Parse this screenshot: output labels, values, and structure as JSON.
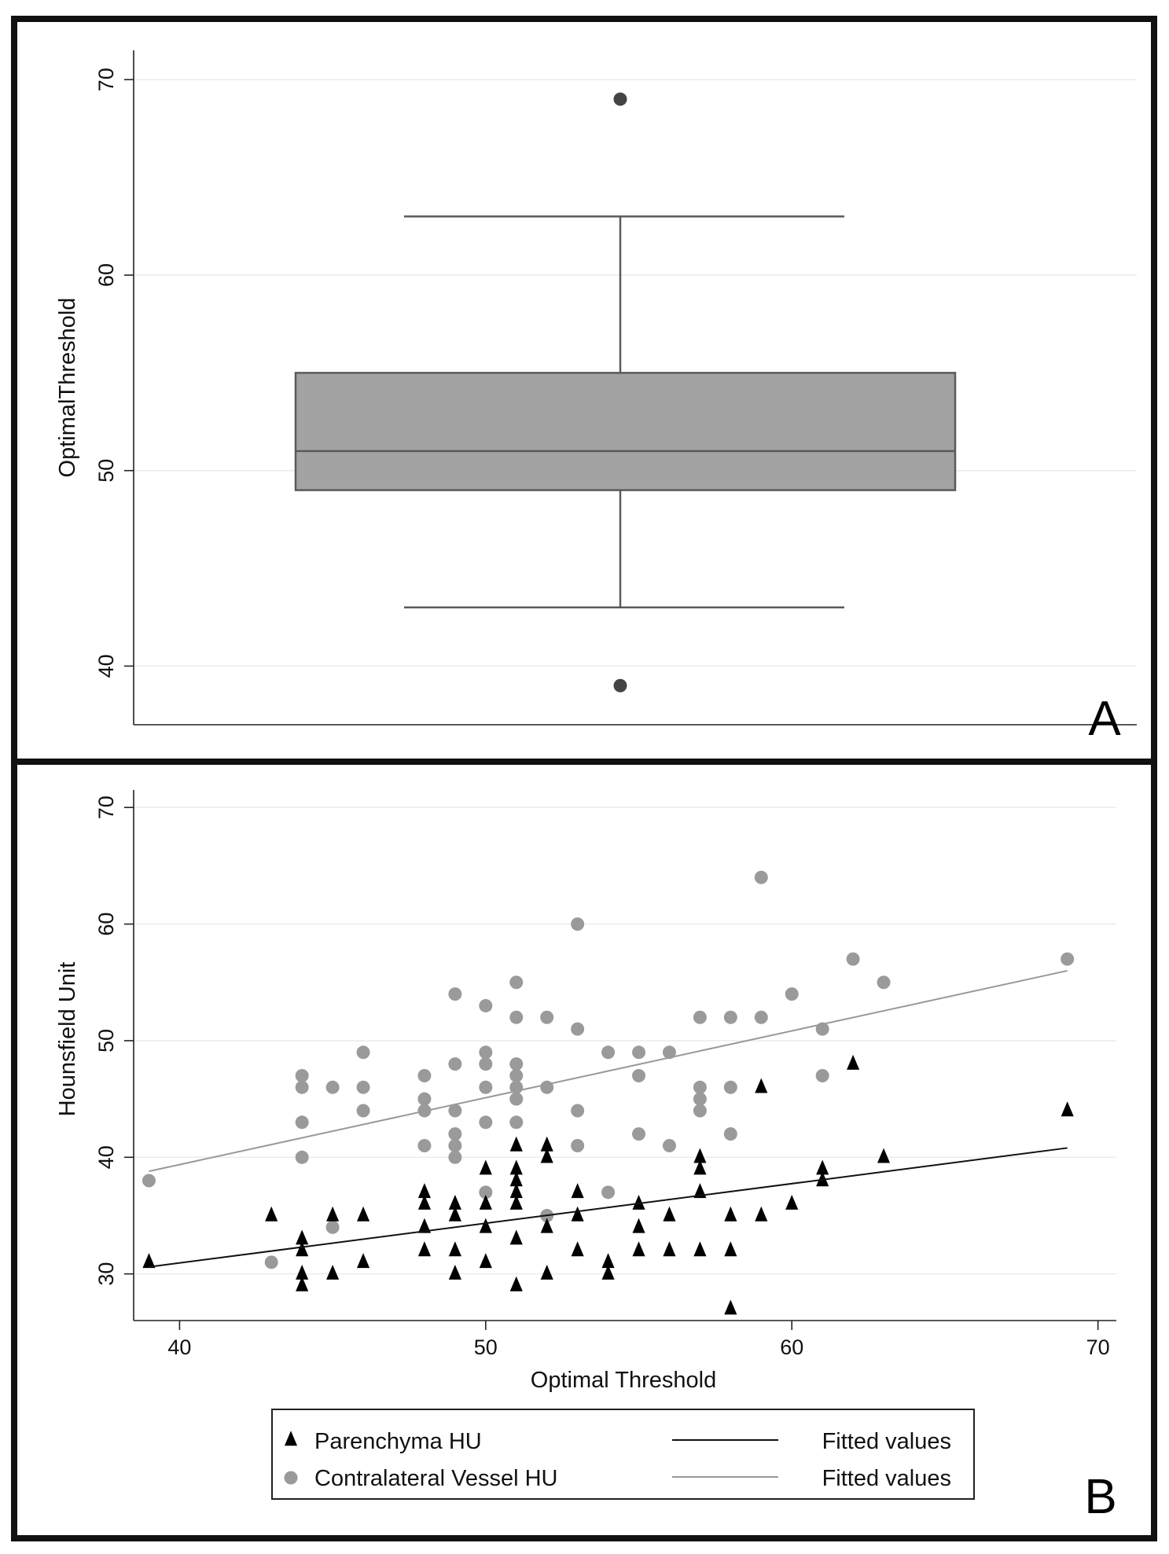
{
  "figure": {
    "panel_letters": [
      "A",
      "B"
    ]
  },
  "colors": {
    "box_fill": "#a3a3a3",
    "box_stroke": "#5a5a5a",
    "outlier": "#444444",
    "parenchyma": "#000000",
    "vessel": "#9a9a9a",
    "fit_parenchyma": "#111111",
    "fit_vessel": "#999999"
  },
  "chart_data": [
    {
      "type": "box",
      "panel": "A",
      "ylabel": "OptimalThreshold",
      "ylim": [
        37,
        71.5
      ],
      "yticks": [
        40,
        50,
        60,
        70
      ],
      "grid": true,
      "box": {
        "lower_whisker": 43,
        "q1": 49,
        "median": 51,
        "q3": 55,
        "upper_whisker": 63,
        "outliers": [
          69,
          39
        ]
      }
    },
    {
      "type": "scatter",
      "panel": "B",
      "xlabel": "Optimal Threshold",
      "ylabel": "Hounsfield Unit",
      "xlim": [
        38.5,
        70.6
      ],
      "ylim": [
        26,
        71.5
      ],
      "xticks": [
        40,
        50,
        60,
        70
      ],
      "yticks": [
        30,
        40,
        50,
        60,
        70
      ],
      "grid": true,
      "legend_position": "bottom",
      "series": [
        {
          "name": "Parenchyma HU",
          "marker": "triangle",
          "points": [
            [
              39,
              31
            ],
            [
              43,
              35
            ],
            [
              44,
              33
            ],
            [
              44,
              32
            ],
            [
              44,
              30
            ],
            [
              44,
              29
            ],
            [
              45,
              35
            ],
            [
              45,
              30
            ],
            [
              46,
              35
            ],
            [
              46,
              31
            ],
            [
              48,
              37
            ],
            [
              48,
              36
            ],
            [
              48,
              34
            ],
            [
              48,
              32
            ],
            [
              49,
              36
            ],
            [
              49,
              35
            ],
            [
              49,
              32
            ],
            [
              49,
              30
            ],
            [
              50,
              39
            ],
            [
              50,
              36
            ],
            [
              50,
              34
            ],
            [
              50,
              31
            ],
            [
              51,
              41
            ],
            [
              51,
              39
            ],
            [
              51,
              38
            ],
            [
              51,
              37
            ],
            [
              51,
              36
            ],
            [
              51,
              33
            ],
            [
              51,
              29
            ],
            [
              52,
              41
            ],
            [
              52,
              40
            ],
            [
              52,
              34
            ],
            [
              52,
              30
            ],
            [
              53,
              37
            ],
            [
              53,
              35
            ],
            [
              53,
              32
            ],
            [
              54,
              31
            ],
            [
              54,
              30
            ],
            [
              55,
              36
            ],
            [
              55,
              34
            ],
            [
              55,
              32
            ],
            [
              56,
              35
            ],
            [
              56,
              32
            ],
            [
              57,
              40
            ],
            [
              57,
              39
            ],
            [
              57,
              37
            ],
            [
              57,
              32
            ],
            [
              58,
              35
            ],
            [
              58,
              32
            ],
            [
              58,
              27
            ],
            [
              59,
              46
            ],
            [
              59,
              35
            ],
            [
              60,
              36
            ],
            [
              61,
              39
            ],
            [
              61,
              38
            ],
            [
              62,
              48
            ],
            [
              63,
              40
            ],
            [
              69,
              44
            ]
          ]
        },
        {
          "name": "Contralateral Vessel HU",
          "marker": "circle",
          "points": [
            [
              39,
              38
            ],
            [
              43,
              31
            ],
            [
              44,
              47
            ],
            [
              44,
              46
            ],
            [
              44,
              43
            ],
            [
              44,
              40
            ],
            [
              45,
              46
            ],
            [
              45,
              34
            ],
            [
              46,
              49
            ],
            [
              46,
              46
            ],
            [
              46,
              44
            ],
            [
              48,
              47
            ],
            [
              48,
              45
            ],
            [
              48,
              44
            ],
            [
              48,
              41
            ],
            [
              49,
              54
            ],
            [
              49,
              48
            ],
            [
              49,
              44
            ],
            [
              49,
              42
            ],
            [
              49,
              41
            ],
            [
              49,
              40
            ],
            [
              50,
              53
            ],
            [
              50,
              49
            ],
            [
              50,
              48
            ],
            [
              50,
              46
            ],
            [
              50,
              43
            ],
            [
              50,
              37
            ],
            [
              51,
              55
            ],
            [
              51,
              52
            ],
            [
              51,
              48
            ],
            [
              51,
              47
            ],
            [
              51,
              46
            ],
            [
              51,
              45
            ],
            [
              51,
              43
            ],
            [
              52,
              52
            ],
            [
              52,
              46
            ],
            [
              52,
              35
            ],
            [
              53,
              60
            ],
            [
              53,
              51
            ],
            [
              53,
              44
            ],
            [
              53,
              41
            ],
            [
              54,
              49
            ],
            [
              54,
              37
            ],
            [
              55,
              49
            ],
            [
              55,
              47
            ],
            [
              55,
              42
            ],
            [
              56,
              49
            ],
            [
              56,
              41
            ],
            [
              57,
              52
            ],
            [
              57,
              46
            ],
            [
              57,
              45
            ],
            [
              57,
              44
            ],
            [
              58,
              52
            ],
            [
              58,
              46
            ],
            [
              58,
              42
            ],
            [
              59,
              64
            ],
            [
              59,
              52
            ],
            [
              60,
              54
            ],
            [
              61,
              51
            ],
            [
              61,
              47
            ],
            [
              62,
              57
            ],
            [
              63,
              55
            ],
            [
              69,
              57
            ]
          ]
        },
        {
          "name": "Fitted values",
          "type": "line",
          "x": [
            39,
            69
          ],
          "y": [
            30.6,
            40.8
          ]
        },
        {
          "name": "Fitted values",
          "type": "line",
          "x": [
            39,
            69
          ],
          "y": [
            38.8,
            56.0
          ]
        }
      ]
    }
  ]
}
